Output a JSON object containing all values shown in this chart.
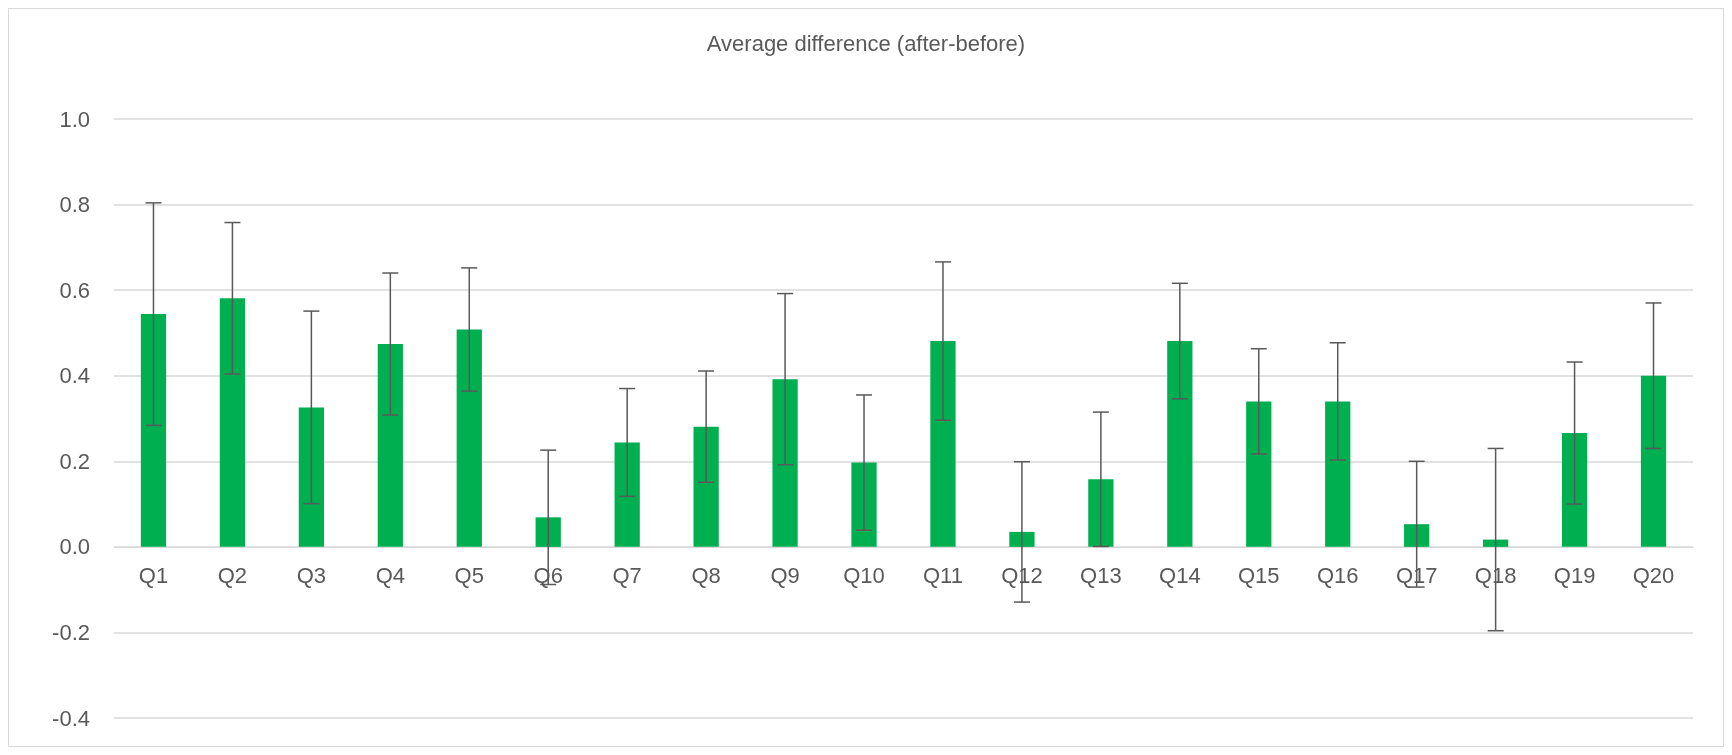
{
  "chart_data": {
    "type": "bar",
    "title": "Average difference (after-before)",
    "categories": [
      "Q1",
      "Q2",
      "Q3",
      "Q4",
      "Q5",
      "Q6",
      "Q7",
      "Q8",
      "Q9",
      "Q10",
      "Q11",
      "Q12",
      "Q13",
      "Q14",
      "Q15",
      "Q16",
      "Q17",
      "Q18",
      "Q19",
      "Q20"
    ],
    "values": [
      0.544,
      0.581,
      0.326,
      0.474,
      0.508,
      0.069,
      0.244,
      0.281,
      0.392,
      0.197,
      0.481,
      0.035,
      0.158,
      0.481,
      0.34,
      0.34,
      0.053,
      0.017,
      0.266,
      0.4
    ],
    "errors": [
      0.26,
      0.177,
      0.225,
      0.166,
      0.144,
      0.157,
      0.126,
      0.13,
      0.2,
      0.158,
      0.185,
      0.164,
      0.157,
      0.135,
      0.123,
      0.137,
      0.147,
      0.213,
      0.166,
      0.17
    ],
    "color": "#00b050",
    "ylim": [
      -0.4,
      1.0
    ],
    "yticks": [
      -0.4,
      -0.2,
      {
        "value": 0,
        "label": "0.0"
      },
      0.2,
      0.4,
      0.6,
      0.8,
      {
        "value": 1,
        "label": "1.0"
      }
    ],
    "grid": "y"
  }
}
